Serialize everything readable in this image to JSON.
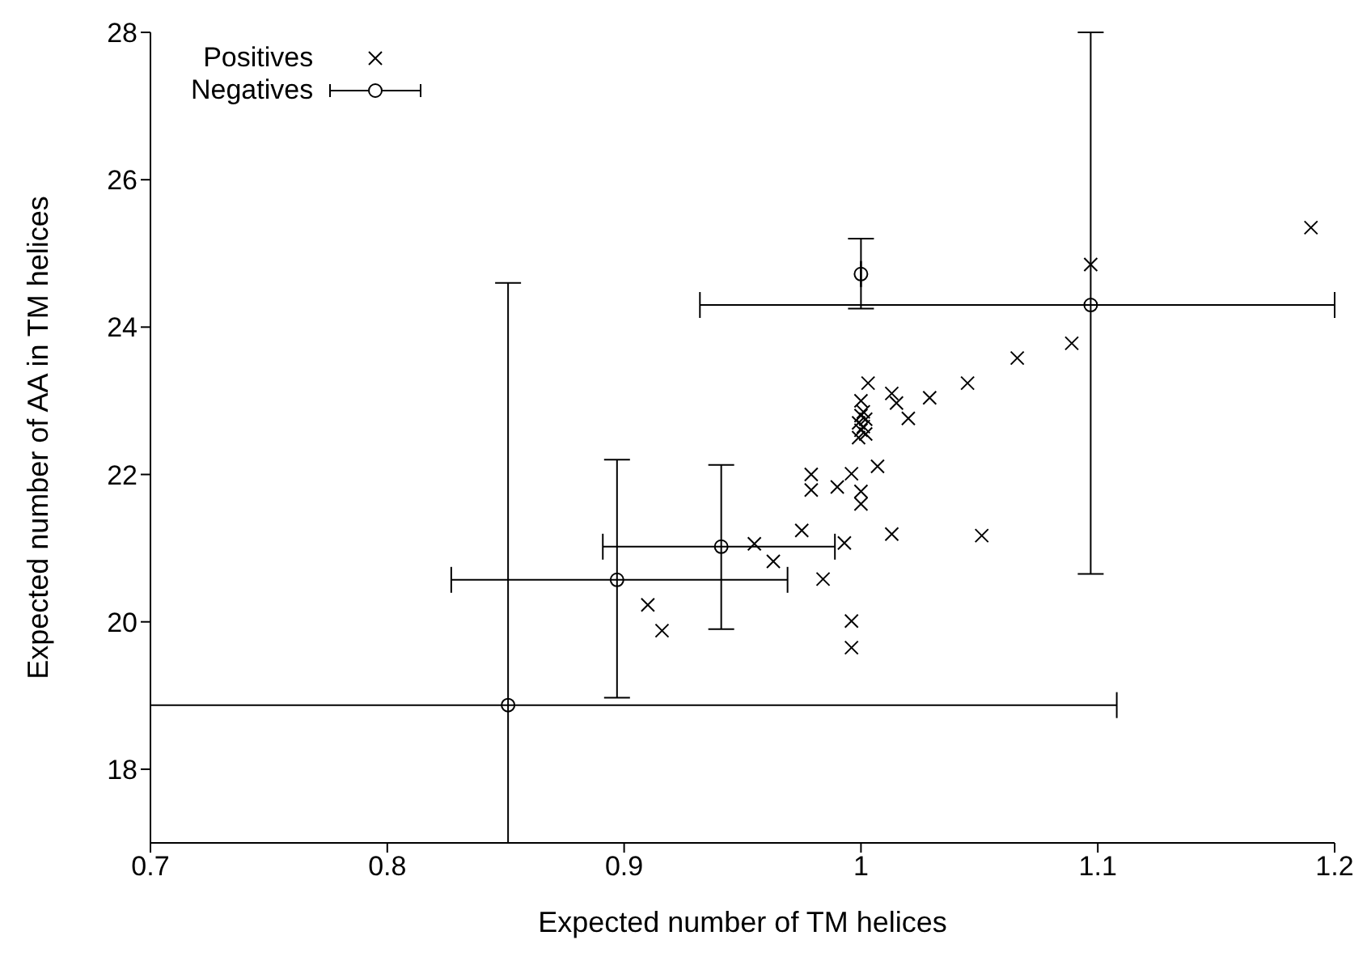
{
  "chart_data": {
    "type": "scatter",
    "xlabel": "Expected number of TM helices",
    "ylabel": "Expected number of AA in TM helices",
    "xlim": [
      0.7,
      1.2
    ],
    "xticks": [
      0.7,
      0.8,
      0.9,
      1,
      1.1,
      1.2
    ],
    "ylim": [
      17,
      28
    ],
    "yticks": [
      18,
      20,
      22,
      24,
      26,
      28
    ],
    "grid": false,
    "legend": "top left",
    "series": [
      {
        "name": "Positives",
        "color": "#000000",
        "marker": "cross",
        "x": [
          1.003,
          1.013,
          1.015,
          1.029,
          1.045,
          1.066,
          1.089,
          1.02,
          1.0,
          1.001,
          1.0,
          1.002,
          0.999,
          1.001,
          1.0,
          1.002,
          0.999,
          1.007,
          0.996,
          0.979,
          0.979,
          0.99,
          1.0,
          1.0,
          0.975,
          1.013,
          1.051,
          0.955,
          0.993,
          0.963,
          0.984,
          0.996,
          0.996,
          0.91,
          0.916,
          1.097,
          1.19
        ],
        "values": [
          23.24,
          23.1,
          22.97,
          23.04,
          23.24,
          23.58,
          23.78,
          22.76,
          23.0,
          22.85,
          22.8,
          22.75,
          22.7,
          22.65,
          22.6,
          22.55,
          22.5,
          22.11,
          22.01,
          22.0,
          21.79,
          21.83,
          21.77,
          21.6,
          21.24,
          21.19,
          21.17,
          21.06,
          21.07,
          20.82,
          20.58,
          20.01,
          19.65,
          20.23,
          19.88,
          24.85,
          25.35
        ]
      },
      {
        "name": "Negatives",
        "color": "#000000",
        "marker": "circle",
        "x": [
          0.851,
          0.897,
          0.941,
          1.0,
          1.097
        ],
        "values": [
          18.87,
          20.57,
          21.02,
          24.72,
          24.3
        ],
        "errors": [
          [
            17,
            24.6
          ],
          [
            18.97,
            22.2
          ],
          [
            19.9,
            22.13
          ],
          [
            24.25,
            25.2
          ],
          [
            20.65,
            28
          ]
        ],
        "xerrors": [
          [
            0.7,
            1.108
          ],
          [
            0.827,
            0.969
          ],
          [
            0.891,
            0.989
          ],
          null,
          [
            0.932,
            1.2
          ]
        ]
      }
    ]
  }
}
